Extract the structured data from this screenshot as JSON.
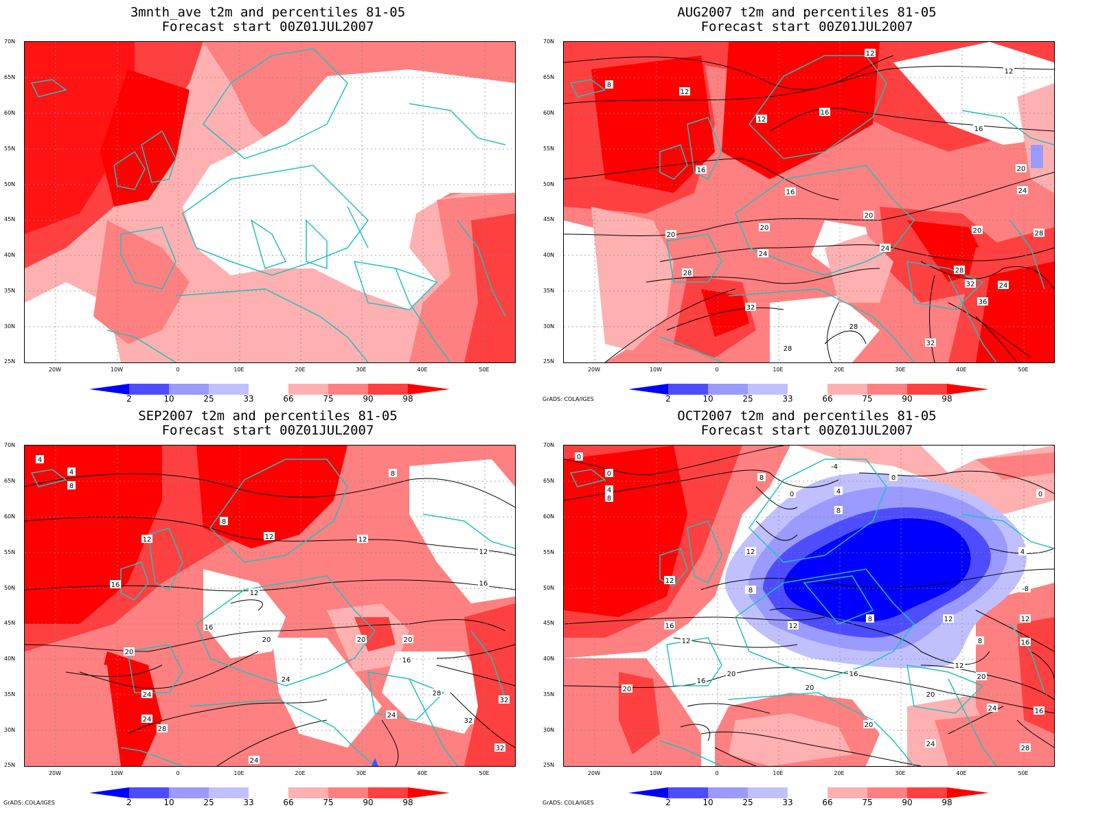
{
  "panels": [
    {
      "id": "p1",
      "title_line1": "3mnth_ave t2m and percentiles 81-05",
      "title_line2": "Forecast start 00Z01JUL2007",
      "credit": ""
    },
    {
      "id": "p2",
      "title_line1": "AUG2007 t2m and percentiles 81-05",
      "title_line2": "Forecast start 00Z01JUL2007",
      "credit": "GrADS: COLA/IGES"
    },
    {
      "id": "p3",
      "title_line1": "SEP2007 t2m and percentiles 81-05",
      "title_line2": "Forecast start 00Z01JUL2007",
      "credit": "GrADS: COLA/IGES"
    },
    {
      "id": "p4",
      "title_line1": "OCT2007 t2m and percentiles 81-05",
      "title_line2": "Forecast start 00Z01JUL2007",
      "credit": "GrADS: COLA/IGES"
    }
  ],
  "axes": {
    "lat_labels": [
      "70N",
      "65N",
      "60N",
      "55N",
      "50N",
      "45N",
      "40N",
      "35N",
      "30N",
      "25N"
    ],
    "lon_labels": [
      "20W",
      "10W",
      "0",
      "10E",
      "20E",
      "30E",
      "40E",
      "50E"
    ]
  },
  "colorbar": {
    "labels": [
      "2",
      "10",
      "25",
      "33",
      "66",
      "75",
      "90",
      "98"
    ],
    "colors": {
      "blue_dark": "#0000ff",
      "blue_mid": "#4d4dff",
      "blue_light": "#9a9aff",
      "blue_pale": "#c0c0ff",
      "white": "#ffffff",
      "red_pale": "#ffb0b0",
      "red_light": "#ff8080",
      "red_mid": "#ff4040",
      "red_dark": "#ff0000"
    }
  },
  "contour_labels": {
    "p2": [
      "12",
      "12",
      "8",
      "12",
      "16",
      "12",
      "16",
      "16",
      "20",
      "24",
      "20",
      "16",
      "20",
      "20",
      "24",
      "24",
      "20",
      "28",
      "28",
      "28",
      "32",
      "24",
      "32",
      "36",
      "32",
      "28",
      "28"
    ],
    "p3": [
      "4",
      "4",
      "8",
      "8",
      "8",
      "12",
      "12",
      "12",
      "12",
      "16",
      "12",
      "16",
      "16",
      "20",
      "20",
      "20",
      "16",
      "20",
      "24",
      "24",
      "24",
      "28",
      "32",
      "24",
      "32",
      "28",
      "24",
      "32"
    ],
    "p4": [
      "0",
      "0",
      "4",
      "8",
      "8",
      "0",
      "-4",
      "4",
      "8",
      "0",
      "0",
      "12",
      "12",
      "8",
      "4",
      "-8",
      "16",
      "12",
      "12",
      "12",
      "8",
      "12",
      "8",
      "16",
      "12",
      "16",
      "20",
      "20",
      "16",
      "20",
      "20",
      "20",
      "24",
      "24",
      "20",
      "16",
      "28"
    ]
  }
}
